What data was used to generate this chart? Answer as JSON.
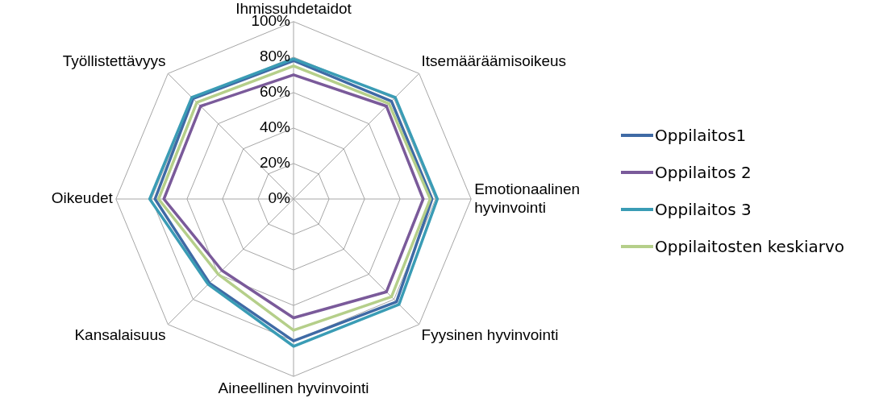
{
  "chart_data": {
    "type": "radar",
    "categories": [
      "Ihmissuhdetaidot",
      "Itsemääräämisoikeus",
      "Emotionaalinen hyvinvointi",
      "Fyysinen hyvinvointi",
      "Aineellinen hyvinvointi",
      "Kansalaisuus",
      "Oikeudet",
      "Työllistettävyys"
    ],
    "series": [
      {
        "name": "Oppilaitos1",
        "color": "#3f6aa5",
        "values": [
          78,
          78,
          78,
          82,
          80,
          67,
          78,
          80
        ]
      },
      {
        "name": "Oppilaitos 2",
        "color": "#7a5a9a",
        "values": [
          70,
          74,
          73,
          74,
          67,
          57,
          73,
          74
        ]
      },
      {
        "name": "Oppilaitos 3",
        "color": "#3a9cb5",
        "values": [
          79,
          81,
          81,
          84,
          83,
          68,
          81,
          81
        ]
      },
      {
        "name": "Oppilaitosten keskiarvo",
        "color": "#b5cf8a",
        "values": [
          75,
          76,
          77,
          78,
          74,
          60,
          76,
          77
        ]
      }
    ],
    "ylim": [
      0,
      100
    ],
    "yticks": [
      {
        "value": 0,
        "label": "0%"
      },
      {
        "value": 20,
        "label": "20%"
      },
      {
        "value": 40,
        "label": "40%"
      },
      {
        "value": 60,
        "label": "60%"
      },
      {
        "value": 80,
        "label": "80%"
      },
      {
        "value": 100,
        "label": "100%"
      }
    ],
    "grid": true,
    "legend": "right",
    "marker": "none",
    "line_style": "solid"
  }
}
